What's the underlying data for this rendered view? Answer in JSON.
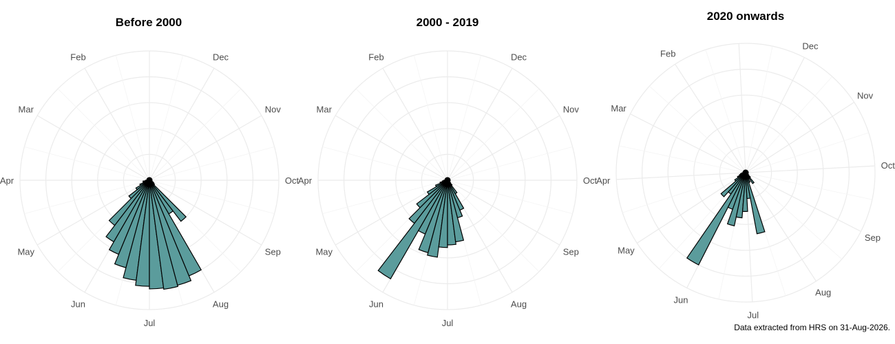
{
  "caption": "Data extracted from HRS on 31-Aug-2026.",
  "colors": {
    "bar_fill": "#5b9c9c",
    "bar_stroke": "#000000",
    "grid": "#ebebeb",
    "label": "#4d4d4d"
  },
  "chart_data": [
    {
      "type": "polar-bar",
      "title": "Before 2000",
      "month_labels": [
        "Jan",
        "Feb",
        "Mar",
        "Apr",
        "May",
        "Jun",
        "Jul",
        "Aug",
        "Sep",
        "Oct",
        "Nov",
        "Dec"
      ],
      "bins_per_month": 4,
      "grid": true,
      "values": [
        0.02,
        0.02,
        0.02,
        0.02,
        0.02,
        0.02,
        0.02,
        0.02,
        0.02,
        0.02,
        0.02,
        0.02,
        0.03,
        0.05,
        0.05,
        0.08,
        0.12,
        0.2,
        0.44,
        0.55,
        0.62,
        0.7,
        0.78,
        0.82,
        0.84,
        0.85,
        0.84,
        0.8,
        0.3,
        0.4,
        0.05,
        0.04,
        0.03,
        0.02,
        0.02,
        0.02,
        0.02,
        0.02,
        0.02,
        0.02,
        0.02,
        0.02,
        0.02,
        0.02,
        0.02,
        0.02,
        0.02,
        0.02
      ]
    },
    {
      "type": "polar-bar",
      "title": "2000 - 2019",
      "month_labels": [
        "Jan",
        "Feb",
        "Mar",
        "Apr",
        "May",
        "Jun",
        "Jul",
        "Aug",
        "Sep",
        "Oct",
        "Nov",
        "Dec"
      ],
      "bins_per_month": 4,
      "grid": true,
      "values": [
        0.02,
        0.02,
        0.02,
        0.02,
        0.02,
        0.02,
        0.02,
        0.02,
        0.02,
        0.02,
        0.02,
        0.02,
        0.03,
        0.04,
        0.06,
        0.1,
        0.18,
        0.3,
        0.42,
        0.88,
        0.45,
        0.58,
        0.6,
        0.52,
        0.5,
        0.48,
        0.3,
        0.25,
        0.12,
        0.05,
        0.03,
        0.02,
        0.02,
        0.02,
        0.02,
        0.02,
        0.02,
        0.02,
        0.02,
        0.02,
        0.02,
        0.02,
        0.02,
        0.02,
        0.02,
        0.02,
        0.02,
        0.02
      ]
    },
    {
      "type": "polar-bar",
      "title": "2020 onwards",
      "month_labels": [
        "Jan",
        "Feb",
        "Mar",
        "Apr",
        "May",
        "Jun",
        "Jul",
        "Aug",
        "Sep",
        "Oct",
        "Nov",
        "Dec"
      ],
      "bins_per_month": 4,
      "grid": true,
      "values": [
        0.02,
        0.02,
        0.02,
        0.02,
        0.02,
        0.02,
        0.02,
        0.02,
        0.02,
        0.02,
        0.02,
        0.02,
        0.03,
        0.04,
        0.05,
        0.07,
        0.1,
        0.25,
        0.2,
        0.8,
        0.3,
        0.42,
        0.35,
        0.3,
        0.2,
        0.48,
        0.08,
        0.05,
        0.1,
        0.05,
        0.03,
        0.02,
        0.02,
        0.02,
        0.02,
        0.02,
        0.02,
        0.02,
        0.02,
        0.02,
        0.02,
        0.02,
        0.02,
        0.02,
        0.02,
        0.02,
        0.02,
        0.02
      ]
    }
  ]
}
